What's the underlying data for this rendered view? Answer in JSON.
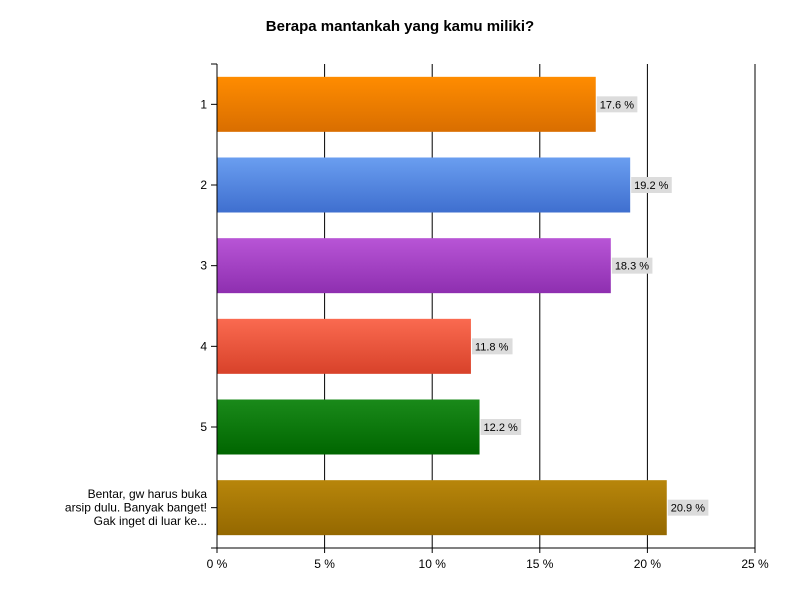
{
  "chart_data": {
    "type": "bar",
    "orientation": "horizontal",
    "title": "Berapa mantankah yang kamu miliki?",
    "categories": [
      "1",
      "2",
      "3",
      "4",
      "5",
      "Bentar, gw harus buka arsip dulu. Banyak banget! Gak inget di luar ke..."
    ],
    "category_lines": [
      [
        "1"
      ],
      [
        "2"
      ],
      [
        "3"
      ],
      [
        "4"
      ],
      [
        "5"
      ],
      [
        "Bentar, gw harus buka",
        "arsip dulu. Banyak banget!",
        "Gak inget di luar ke..."
      ]
    ],
    "values": [
      17.6,
      19.2,
      18.3,
      11.8,
      12.2,
      20.9
    ],
    "data_labels": [
      "17.6 %",
      "19.2 %",
      "18.3 %",
      "11.8 %",
      "12.2 %",
      "20.9 %"
    ],
    "xlim": [
      0,
      25
    ],
    "xticks": [
      0,
      5,
      10,
      15,
      20,
      25
    ],
    "xtick_labels": [
      "0 %",
      "5 %",
      "10 %",
      "15 %",
      "20 %",
      "25 %"
    ],
    "grid": true,
    "legend": "none",
    "colors": [
      [
        "#ff8c00",
        "#d96e00"
      ],
      [
        "#6a9ef0",
        "#3f6fcf"
      ],
      [
        "#b855d6",
        "#8e2fb0"
      ],
      [
        "#fa6a50",
        "#d8422a"
      ],
      [
        "#1a8a1a",
        "#006600"
      ],
      [
        "#b8860b",
        "#946800"
      ]
    ]
  }
}
